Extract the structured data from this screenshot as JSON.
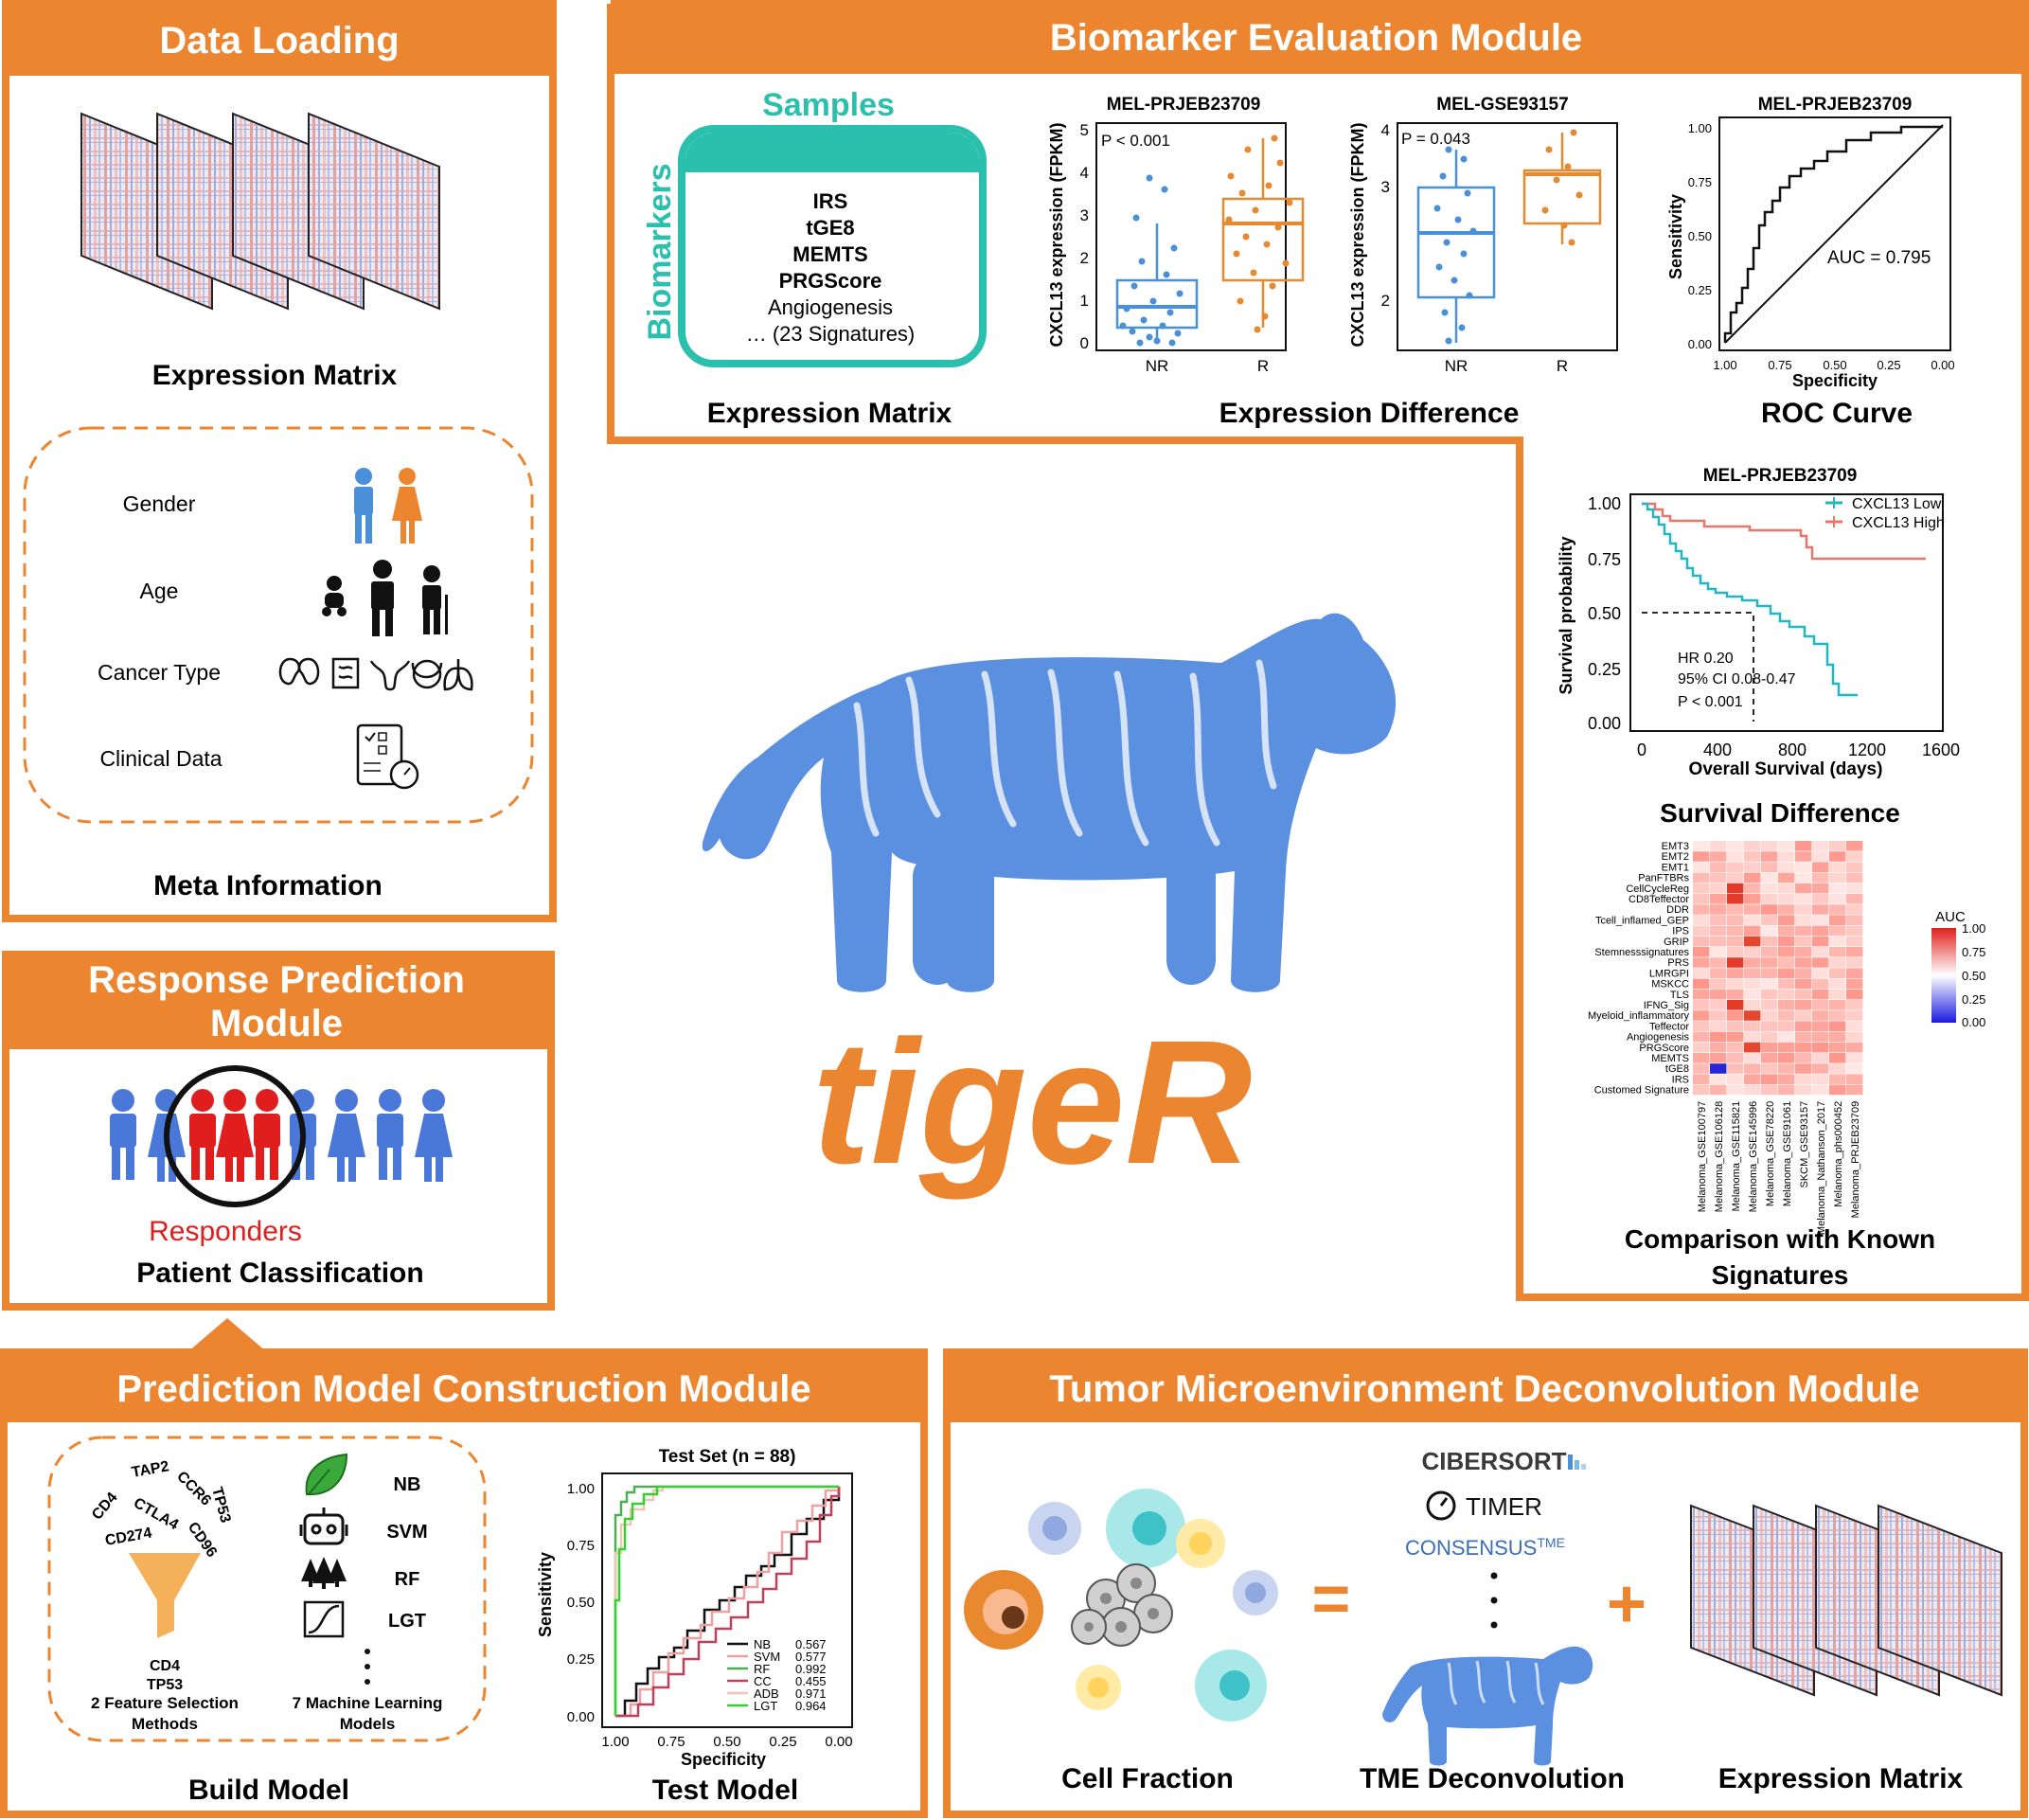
{
  "colors": {
    "orange": "#ec8530",
    "teal": "#2bbfad",
    "blue": "#5b8fe0",
    "plot_blue": "#4a90d9",
    "plot_orange": "#e8892f",
    "km_low": "#1fb7c3",
    "km_high": "#e8776a",
    "red": "#e01e1e"
  },
  "data_loading": {
    "title": "Data Loading",
    "expression_caption": "Expression Matrix",
    "meta_items": [
      "Gender",
      "Age",
      "Cancer Type",
      "Clinical Data"
    ],
    "meta_caption": "Meta Information",
    "icons": [
      "male-icon",
      "female-icon",
      "baby-icon",
      "man-icon",
      "elderly-icon",
      "kidney-icon",
      "intestine-icon",
      "uterus-icon",
      "bladder-icon",
      "lung-icon",
      "clinical-report-icon"
    ]
  },
  "biomarker": {
    "title": "Biomarker Evaluation Module",
    "samples_label": "Samples",
    "biomarkers_label": "Biomarkers",
    "biomarker_list": [
      "IRS",
      "tGE8",
      "MEMTS",
      "PRGScore",
      "Angiogenesis",
      "… (23 Signatures)"
    ],
    "caption_matrix": "Expression Matrix",
    "caption_difference": "Expression Difference",
    "caption_roc": "ROC Curve",
    "box1": {
      "title": "MEL-PRJEB23709",
      "ylabel": "CXCL13 expression (FPKM)",
      "p": "P < 0.001",
      "yticks": [
        "0",
        "1",
        "2",
        "3",
        "4",
        "5"
      ],
      "groups": [
        "NR",
        "R"
      ]
    },
    "box2": {
      "title": "MEL-GSE93157",
      "ylabel": "CXCL13 expression (FPKM)",
      "p": "P = 0.043",
      "yticks": [
        "2",
        "3",
        "4"
      ],
      "groups": [
        "NR",
        "R"
      ]
    },
    "roc": {
      "title": "MEL-PRJEB23709",
      "auc": "AUC = 0.795",
      "ylabel": "Sensitivity",
      "xlabel": "Specificity",
      "yticks": [
        "0.00",
        "0.25",
        "0.50",
        "0.75",
        "1.00"
      ],
      "xticks": [
        "1.00",
        "0.75",
        "0.50",
        "0.25",
        "0.00"
      ]
    }
  },
  "survival": {
    "title": "MEL-PRJEB23709",
    "legend": [
      "CXCL13 Low",
      "CXCL13 High"
    ],
    "ylabel": "Survival probability",
    "xlabel": "Overall Survival (days)",
    "yticks": [
      "0.00",
      "0.25",
      "0.50",
      "0.75",
      "1.00"
    ],
    "xticks": [
      "0",
      "400",
      "800",
      "1200",
      "1600"
    ],
    "hr": "HR 0.20",
    "ci": "95% CI 0.08-0.47",
    "p": "P < 0.001",
    "caption": "Survival Difference"
  },
  "heatmap": {
    "legend_title": "AUC",
    "legend_ticks": [
      "1.00",
      "0.75",
      "0.50",
      "0.25",
      "0.00"
    ],
    "rows": [
      "EMT3",
      "EMT2",
      "EMT1",
      "PanFTBRs",
      "CellCycleReg",
      "CD8Teffector",
      "DDR",
      "Tcell_inflamed_GEP",
      "IPS",
      "GRIP",
      "Stemnesssignatures",
      "PRS",
      "LMRGPI",
      "MSKCC",
      "TLS",
      "IFNG_Sig",
      "Myeloid_inflammatory",
      "Teffector",
      "Angiogenesis",
      "PRGScore",
      "MEMTS",
      "tGE8",
      "IRS",
      "Customed Signature"
    ],
    "cols": [
      "Melanoma_GSE100797",
      "Melanoma_GSE106128",
      "Melanoma_GSE115821",
      "Melanoma_GSE145996",
      "Melanoma_GSE78220",
      "Melanoma_GSE91061",
      "SKCM_GSE93157",
      "Melanoma_Nathanson_2017",
      "Melanoma_phs000452",
      "Melanoma_PRJEB23709"
    ],
    "caption_line1": "Comparison with Known",
    "caption_line2": "Signatures"
  },
  "logo": {
    "text": "tigeR"
  },
  "response": {
    "title_line1": "Response Prediction",
    "title_line2": "Module",
    "responders_label": "Responders",
    "caption": "Patient Classification"
  },
  "construction": {
    "title": "Prediction Model Construction Module",
    "genes": [
      "TAP2",
      "CCR6",
      "CD4",
      "CTLA4",
      "TP53",
      "CD274",
      "CD96"
    ],
    "selected": [
      "CD4",
      "TP53"
    ],
    "feature_caption_line1": "2 Feature Selection",
    "feature_caption_line2": "Methods",
    "models": [
      "NB",
      "SVM",
      "RF",
      "LGT"
    ],
    "models_caption_line1": "7 Machine Learning",
    "models_caption_line2": "Models",
    "build_caption": "Build Model",
    "test_caption": "Test Model",
    "test_roc": {
      "title": "Test Set  (n = 88)",
      "ylabel": "Sensitivity",
      "xlabel": "Specificity",
      "yticks": [
        "0.00",
        "0.25",
        "0.50",
        "0.75",
        "1.00"
      ],
      "xticks": [
        "1.00",
        "0.75",
        "0.50",
        "0.25",
        "0.00"
      ],
      "legend": [
        {
          "name": "NB",
          "auc": "0.567",
          "color": "#111111"
        },
        {
          "name": "SVM",
          "auc": "0.577",
          "color": "#f0a0a0"
        },
        {
          "name": "RF",
          "auc": "0.992",
          "color": "#4caf50"
        },
        {
          "name": "CC",
          "auc": "0.455",
          "color": "#c0405a"
        },
        {
          "name": "ADB",
          "auc": "0.971",
          "color": "#f6c2b4"
        },
        {
          "name": "LGT",
          "auc": "0.964",
          "color": "#33d12f"
        }
      ]
    }
  },
  "deconvolution": {
    "title": "Tumor Microenvironment Deconvolution Module",
    "tools": [
      "CIBERSORT",
      "TIMER",
      "CONSENSUS"
    ],
    "tools_suffix": "TME",
    "equals": "=",
    "plus": "+",
    "captions": [
      "Cell Fraction",
      "TME Deconvolution",
      "Expression Matrix"
    ]
  }
}
